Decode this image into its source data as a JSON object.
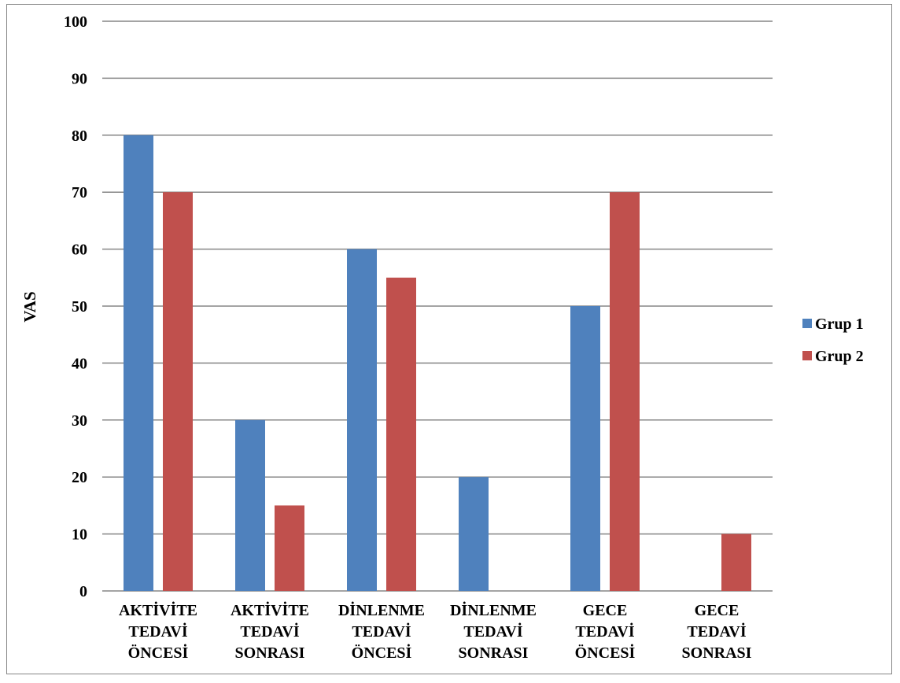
{
  "chart_data": {
    "type": "bar",
    "ylabel": "VAS",
    "xlabel": "",
    "ylim": [
      0,
      100
    ],
    "yticks": [
      0,
      10,
      20,
      30,
      40,
      50,
      60,
      70,
      80,
      90,
      100
    ],
    "grid": true,
    "legend_position": "right",
    "categories": [
      [
        "AKTİVİTE",
        "TEDAVİ",
        "ÖNCESİ"
      ],
      [
        "AKTİVİTE",
        "TEDAVİ",
        "SONRASI"
      ],
      [
        "DİNLENME",
        "TEDAVİ",
        "ÖNCESİ"
      ],
      [
        "DİNLENME",
        "TEDAVİ",
        "SONRASI"
      ],
      [
        "GECE",
        "TEDAVİ",
        "ÖNCESİ"
      ],
      [
        "GECE",
        "TEDAVİ",
        "SONRASI"
      ]
    ],
    "series": [
      {
        "name": "Grup 1",
        "color": "#4F81BD",
        "values": [
          80,
          30,
          60,
          20,
          50,
          0
        ]
      },
      {
        "name": "Grup 2",
        "color": "#C0504D",
        "values": [
          70,
          15,
          55,
          0,
          70,
          10
        ]
      }
    ]
  }
}
